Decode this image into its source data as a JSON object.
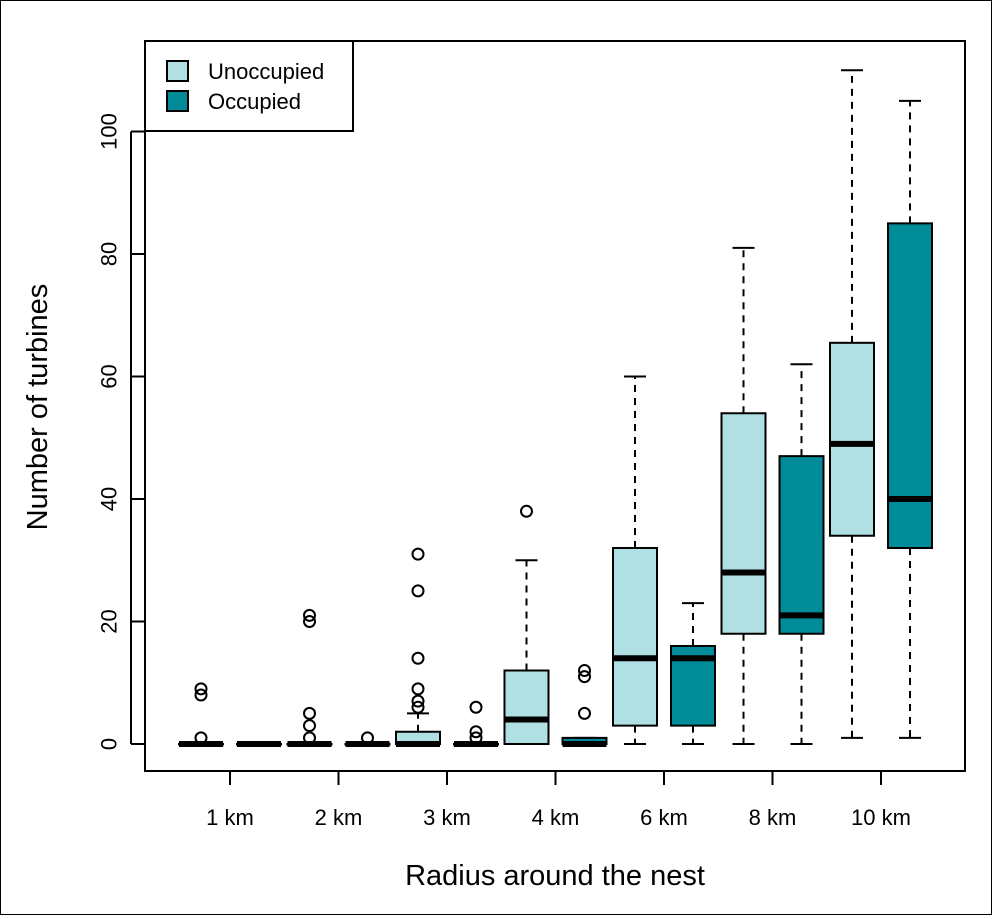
{
  "chart_data": {
    "type": "boxplot",
    "xlabel": "Radius around the nest",
    "ylabel": "Number of turbines",
    "ylim": [
      -4,
      113
    ],
    "yticks": [
      0,
      20,
      40,
      60,
      80,
      100
    ],
    "categories": [
      "1 km",
      "2 km",
      "3 km",
      "4 km",
      "6 km",
      "8 km",
      "10 km"
    ],
    "legend_position": "top-left",
    "colors": {
      "Unoccupied": "#b0e0e2",
      "Occupied": "#008b98"
    },
    "series": [
      {
        "name": "Unoccupied",
        "boxes": [
          {
            "min": 0,
            "q1": 0,
            "median": 0,
            "q3": 0,
            "max": 0,
            "outliers": [
              1,
              8,
              9
            ]
          },
          {
            "min": 0,
            "q1": 0,
            "median": 0,
            "q3": 0,
            "max": 0,
            "outliers": [
              1,
              3,
              5,
              20,
              21
            ]
          },
          {
            "min": 0,
            "q1": 0,
            "median": 0,
            "q3": 2,
            "max": 5,
            "outliers": [
              6,
              7,
              9,
              14,
              25,
              31
            ]
          },
          {
            "min": 0,
            "q1": 0,
            "median": 4,
            "q3": 12,
            "max": 30,
            "outliers": [
              38
            ]
          },
          {
            "min": 0,
            "q1": 3,
            "median": 14,
            "q3": 32,
            "max": 60,
            "outliers": []
          },
          {
            "min": 0,
            "q1": 18,
            "median": 28,
            "q3": 54,
            "max": 81,
            "outliers": []
          },
          {
            "min": 1,
            "q1": 34,
            "median": 49,
            "q3": 65.5,
            "max": 110,
            "outliers": []
          }
        ]
      },
      {
        "name": "Occupied",
        "boxes": [
          {
            "min": 0,
            "q1": 0,
            "median": 0,
            "q3": 0,
            "max": 0,
            "outliers": []
          },
          {
            "min": 0,
            "q1": 0,
            "median": 0,
            "q3": 0,
            "max": 0,
            "outliers": [
              1
            ]
          },
          {
            "min": 0,
            "q1": 0,
            "median": 0,
            "q3": 0,
            "max": 0,
            "outliers": [
              1,
              2,
              6
            ]
          },
          {
            "min": 0,
            "q1": 0,
            "median": 0,
            "q3": 1,
            "max": 1,
            "outliers": [
              5,
              11,
              12
            ]
          },
          {
            "min": 0,
            "q1": 3,
            "median": 14,
            "q3": 16,
            "max": 23,
            "outliers": []
          },
          {
            "min": 0,
            "q1": 18,
            "median": 21,
            "q3": 47,
            "max": 62,
            "outliers": []
          },
          {
            "min": 1,
            "q1": 32,
            "median": 40,
            "q3": 85,
            "max": 105,
            "outliers": []
          }
        ]
      }
    ]
  }
}
